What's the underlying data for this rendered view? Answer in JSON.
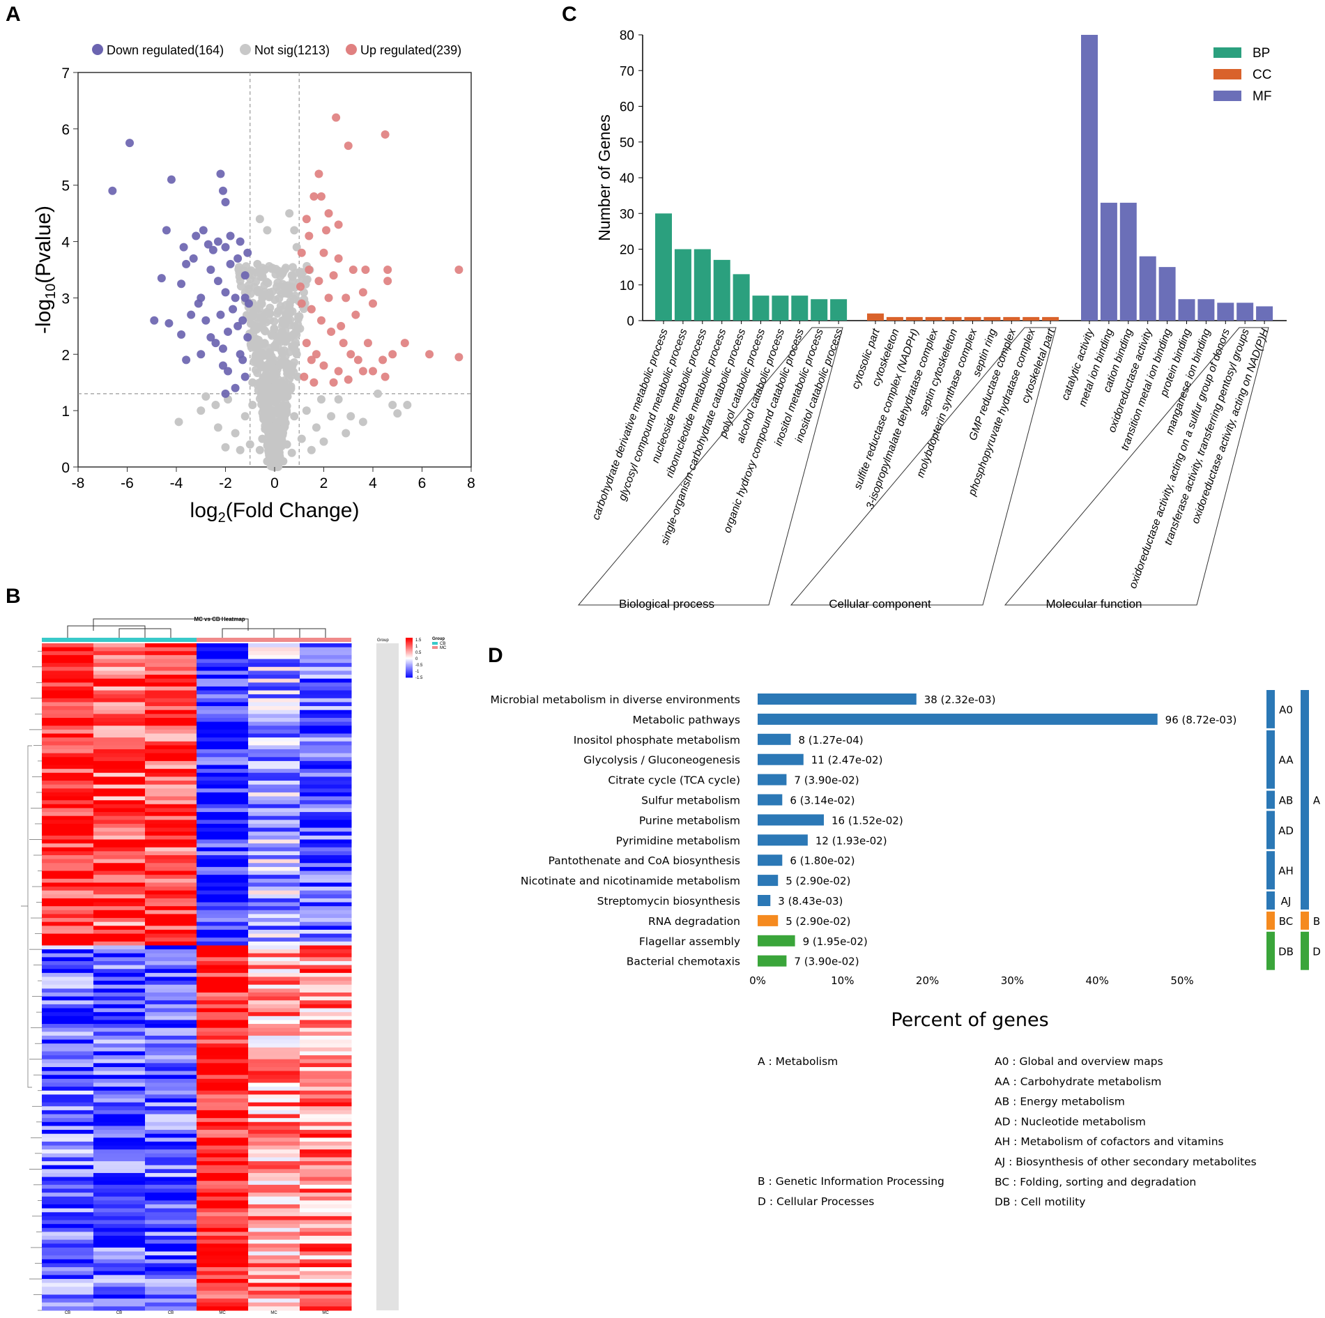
{
  "panels": {
    "a": "A",
    "b": "B",
    "c": "C",
    "d": "D"
  },
  "volcano": {
    "type": "scatter",
    "legend": [
      {
        "label": "Down regulated(164)",
        "color": "#6b64b0"
      },
      {
        "label": "Not sig(1213)",
        "color": "#c8c8c8"
      },
      {
        "label": "Up regulated(239)",
        "color": "#e08080"
      }
    ],
    "xlabel": "log2(Fold Change)",
    "ylabel": "-log10(Pvalue)",
    "xlim": [
      -8,
      8
    ],
    "ylim": [
      0,
      7
    ],
    "xticks": [
      -8,
      -6,
      -4,
      -2,
      0,
      2,
      4,
      6,
      8
    ],
    "yticks": [
      0,
      1,
      2,
      3,
      4,
      5,
      6,
      7
    ],
    "fc_thresholds": [
      -1,
      1
    ],
    "p_threshold": 1.3,
    "counts": {
      "down": 164,
      "notsig": 1213,
      "up": 239
    },
    "down_points": [
      [
        -6.6,
        4.9
      ],
      [
        -5.9,
        5.75
      ],
      [
        -4.2,
        5.1
      ],
      [
        -4.4,
        4.2
      ],
      [
        -4.6,
        3.35
      ],
      [
        -4.9,
        2.6
      ],
      [
        -4.3,
        2.55
      ],
      [
        -3.8,
        2.35
      ],
      [
        -3.6,
        1.9
      ],
      [
        -3.6,
        3.6
      ],
      [
        -3.7,
        3.9
      ],
      [
        -3.8,
        3.25
      ],
      [
        -3.2,
        4.1
      ],
      [
        -2.9,
        4.2
      ],
      [
        -2.2,
        5.2
      ],
      [
        -2.1,
        4.9
      ],
      [
        -2.0,
        4.7
      ],
      [
        -3.1,
        2.9
      ],
      [
        -3.4,
        2.7
      ],
      [
        -3.0,
        2.0
      ],
      [
        -2.6,
        3.5
      ],
      [
        -2.8,
        2.6
      ],
      [
        -2.3,
        3.3
      ],
      [
        -2.0,
        3.1
      ],
      [
        -1.9,
        2.4
      ],
      [
        -2.1,
        1.8
      ],
      [
        -2.0,
        1.3
      ],
      [
        -1.6,
        1.4
      ],
      [
        -1.4,
        2.0
      ],
      [
        -1.3,
        2.6
      ],
      [
        -1.2,
        3.4
      ],
      [
        -1.1,
        3.8
      ],
      [
        -1.5,
        3.7
      ],
      [
        -1.8,
        3.6
      ],
      [
        -2.5,
        3.85
      ],
      [
        -2.7,
        3.95
      ],
      [
        -2.4,
        2.2
      ],
      [
        -1.7,
        2.8
      ],
      [
        -1.2,
        1.6
      ],
      [
        -1.1,
        2.3
      ],
      [
        -3.3,
        3.7
      ],
      [
        -2.2,
        2.7
      ],
      [
        -1.4,
        4.0
      ],
      [
        -1.6,
        3.0
      ],
      [
        -2.0,
        3.9
      ],
      [
        -1.3,
        1.9
      ],
      [
        -1.9,
        1.7
      ],
      [
        -2.6,
        2.3
      ],
      [
        -1.05,
        2.9
      ],
      [
        -1.8,
        4.1
      ],
      [
        -2.3,
        4.0
      ],
      [
        -3.0,
        3.0
      ],
      [
        -1.5,
        2.5
      ],
      [
        -2.1,
        2.1
      ],
      [
        -1.2,
        3.0
      ]
    ],
    "up_points": [
      [
        2.5,
        6.2
      ],
      [
        3.0,
        5.7
      ],
      [
        4.5,
        5.9
      ],
      [
        1.8,
        5.2
      ],
      [
        1.6,
        4.8
      ],
      [
        1.9,
        4.8
      ],
      [
        2.2,
        4.5
      ],
      [
        2.6,
        4.3
      ],
      [
        1.4,
        4.1
      ],
      [
        1.1,
        3.8
      ],
      [
        2.6,
        3.7
      ],
      [
        3.2,
        3.5
      ],
      [
        3.7,
        3.5
      ],
      [
        4.6,
        3.5
      ],
      [
        4.6,
        3.3
      ],
      [
        3.6,
        3.1
      ],
      [
        4.0,
        2.9
      ],
      [
        3.3,
        2.7
      ],
      [
        7.5,
        3.5
      ],
      [
        7.5,
        1.95
      ],
      [
        6.3,
        2.0
      ],
      [
        5.3,
        2.2
      ],
      [
        4.8,
        2.0
      ],
      [
        4.4,
        1.9
      ],
      [
        4.0,
        1.7
      ],
      [
        3.6,
        1.7
      ],
      [
        4.5,
        1.6
      ],
      [
        3.1,
        2.0
      ],
      [
        2.7,
        2.5
      ],
      [
        2.2,
        3.0
      ],
      [
        1.8,
        3.3
      ],
      [
        1.5,
        2.8
      ],
      [
        1.3,
        2.2
      ],
      [
        1.2,
        1.6
      ],
      [
        1.6,
        1.5
      ],
      [
        2.0,
        1.8
      ],
      [
        2.4,
        1.5
      ],
      [
        2.8,
        2.2
      ],
      [
        3.4,
        1.9
      ],
      [
        1.1,
        2.9
      ],
      [
        1.4,
        3.5
      ],
      [
        2.0,
        3.8
      ],
      [
        2.9,
        3.0
      ],
      [
        3.8,
        2.2
      ],
      [
        1.7,
        2.0
      ],
      [
        2.3,
        2.4
      ],
      [
        1.3,
        4.4
      ],
      [
        2.1,
        4.2
      ],
      [
        1.05,
        3.2
      ],
      [
        2.6,
        1.7
      ],
      [
        1.9,
        2.6
      ],
      [
        3.0,
        1.55
      ],
      [
        1.5,
        1.9
      ],
      [
        2.4,
        3.4
      ]
    ],
    "notsig_points": [
      [
        -0.6,
        4.4
      ],
      [
        -0.3,
        4.2
      ],
      [
        0.6,
        4.5
      ],
      [
        0.8,
        4.2
      ],
      [
        0.9,
        3.9
      ],
      [
        -0.7,
        3.6
      ],
      [
        0.7,
        3.4
      ],
      [
        -0.5,
        3.0
      ],
      [
        0.5,
        2.7
      ],
      [
        -0.8,
        2.5
      ],
      [
        0.3,
        2.4
      ],
      [
        -0.2,
        2.0
      ],
      [
        0.2,
        1.8
      ],
      [
        -0.4,
        1.6
      ],
      [
        0.6,
        1.4
      ],
      [
        -0.9,
        1.1
      ],
      [
        0.8,
        0.9
      ],
      [
        -0.3,
        0.8
      ],
      [
        0.3,
        0.6
      ],
      [
        -0.1,
        0.4
      ],
      [
        0.1,
        0.3
      ],
      [
        0.0,
        0.15
      ],
      [
        -0.2,
        0.25
      ],
      [
        0.2,
        0.2
      ],
      [
        -0.5,
        0.5
      ],
      [
        0.5,
        0.4
      ],
      [
        -1.2,
        0.9
      ],
      [
        1.3,
        1.0
      ],
      [
        -1.6,
        0.6
      ],
      [
        1.7,
        0.7
      ],
      [
        -2.4,
        1.1
      ],
      [
        2.6,
        1.2
      ],
      [
        -3.0,
        1.0
      ],
      [
        3.1,
        0.9
      ],
      [
        4.2,
        1.3
      ],
      [
        4.8,
        1.1
      ],
      [
        5.4,
        1.1
      ],
      [
        5.0,
        0.95
      ],
      [
        -3.9,
        0.8
      ],
      [
        -2.8,
        1.25
      ],
      [
        3.6,
        0.8
      ],
      [
        2.9,
        0.6
      ],
      [
        -2.3,
        0.7
      ],
      [
        -1.9,
        1.2
      ],
      [
        1.9,
        1.2
      ],
      [
        2.3,
        0.9
      ],
      [
        -0.9,
        1.5
      ],
      [
        0.95,
        1.6
      ],
      [
        -0.6,
        2.2
      ],
      [
        0.4,
        3.2
      ],
      [
        -0.4,
        3.5
      ],
      [
        0.9,
        2.0
      ],
      [
        -0.8,
        1.9
      ],
      [
        -0.1,
        1.0
      ],
      [
        0.1,
        1.2
      ],
      [
        -0.3,
        0.1
      ],
      [
        0.35,
        0.1
      ],
      [
        -0.6,
        0.3
      ],
      [
        0.7,
        0.25
      ],
      [
        -1.0,
        0.4
      ],
      [
        1.1,
        0.5
      ],
      [
        -1.4,
        0.3
      ],
      [
        1.5,
        0.3
      ],
      [
        2.0,
        0.45
      ],
      [
        -2.0,
        0.35
      ]
    ]
  },
  "heatmap": {
    "type": "heatmap",
    "title": "MC vs CB Heatmap",
    "legend_title": "Group",
    "groups": [
      "CB",
      "MC"
    ],
    "group_colors": [
      "#39c9c9",
      "#f08a8a"
    ],
    "scale_labels": [
      "1.5",
      "1",
      "0.5",
      "0",
      "-0.5",
      "-1",
      "-1.5"
    ],
    "column_labels": [
      "CB",
      "CB",
      "CB",
      "MC",
      "MC",
      "MC"
    ],
    "row_header": "Group",
    "blocks": [
      {
        "rows": 440,
        "values": [
          1.3,
          1.0,
          1.1,
          -1.3,
          -0.5,
          -0.9
        ]
      },
      {
        "rows": 530,
        "values": [
          -0.9,
          -1.0,
          -1.0,
          1.4,
          0.6,
          0.7
        ]
      }
    ]
  },
  "go": {
    "type": "bar",
    "ylabel": "Number of Genes",
    "ylim": [
      0,
      80
    ],
    "yticks": [
      0,
      10,
      20,
      30,
      40,
      50,
      60,
      70,
      80
    ],
    "legend": [
      {
        "name": "BP",
        "color": "#2ba07e"
      },
      {
        "name": "CC",
        "color": "#d9622b"
      },
      {
        "name": "MF",
        "color": "#6b6fb8"
      }
    ],
    "series": [
      {
        "name": "BP",
        "group": "Biological process",
        "categories": [
          "carbohydrate derivative metabolic process",
          "glycosyl compound metabolic process",
          "nucleoside metabolic process",
          "ribonucleotide metabolic process",
          "single-organism carbohydrate catabolic process",
          "polyol catabolic process",
          "alcohol catabolic process",
          "organic hydroxy compound catabolic process",
          "inositol metabolic process",
          "inositol catabolic process"
        ],
        "values": [
          30,
          20,
          20,
          17,
          13,
          7,
          7,
          7,
          6,
          6
        ]
      },
      {
        "name": "CC",
        "group": "Cellular component",
        "categories": [
          "cytosolic part",
          "cytoskeleton",
          "sulfite reductase complex (NADPH)",
          "3-isopropylmalate dehydratase complex",
          "septin cytoskeleton",
          "molybdopterin synthase complex",
          "septin ring",
          "GMP reductase complex",
          "phosphopyruvate hydratase complex",
          "cytoskeletal part"
        ],
        "values": [
          2,
          1,
          1,
          1,
          1,
          1,
          1,
          1,
          1,
          1
        ]
      },
      {
        "name": "MF",
        "group": "Molecular function",
        "categories": [
          "catalytic activity",
          "metal ion binding",
          "cation binding",
          "oxidoreductase activity",
          "transition metal ion binding",
          "protein binding",
          "manganese ion binding",
          "oxidoreductase activity, acting on a sulfur group of donors",
          "transferase activity, transferring pentosyl groups",
          "oxidoreductase activity, acting on NAD(P)H"
        ],
        "values": [
          80,
          33,
          33,
          18,
          15,
          6,
          6,
          5,
          5,
          4
        ]
      }
    ]
  },
  "kegg": {
    "type": "bar",
    "xlabel": "Percent of genes",
    "xlim": [
      0,
      50
    ],
    "xticks": [
      "0%",
      "10%",
      "20%",
      "30%",
      "40%",
      "50%"
    ],
    "categories": [
      "Microbial metabolism in diverse environments",
      "Metabolic pathways",
      "Inositol phosphate metabolism",
      "Glycolysis / Gluconeogenesis",
      "Citrate cycle (TCA cycle)",
      "Sulfur metabolism",
      "Purine metabolism",
      "Pyrimidine metabolism",
      "Pantothenate and CoA biosynthesis",
      "Nicotinate and nicotinamide metabolism",
      "Streptomycin biosynthesis",
      "RNA degradation",
      "Flagellar assembly",
      "Bacterial chemotaxis"
    ],
    "values": [
      18.7,
      47.1,
      3.9,
      5.4,
      3.4,
      2.9,
      7.8,
      5.9,
      2.9,
      2.4,
      1.5,
      2.4,
      4.4,
      3.4
    ],
    "labels": [
      "38 (2.32e-03)",
      "96 (8.72e-03)",
      "8 (1.27e-04)",
      "11 (2.47e-02)",
      "7 (3.90e-02)",
      "6 (3.14e-02)",
      "16 (1.52e-02)",
      "12 (1.93e-02)",
      "6 (1.80e-02)",
      "5 (2.90e-02)",
      "3 (8.43e-03)",
      "5 (2.90e-02)",
      "9 (1.95e-02)",
      "7 (3.90e-02)"
    ],
    "bar_classes": [
      "A",
      "A",
      "A",
      "A",
      "A",
      "A",
      "A",
      "A",
      "A",
      "A",
      "A",
      "B",
      "D",
      "D"
    ],
    "class_colors": {
      "A": "#2b78b6",
      "B": "#f58a1f",
      "D": "#3aa53a"
    },
    "subgroups": [
      {
        "code": "A0",
        "start": 0,
        "end": 1
      },
      {
        "code": "AA",
        "start": 2,
        "end": 4
      },
      {
        "code": "AB",
        "start": 5,
        "end": 5
      },
      {
        "code": "AD",
        "start": 6,
        "end": 7
      },
      {
        "code": "AH",
        "start": 8,
        "end": 9
      },
      {
        "code": "AJ",
        "start": 10,
        "end": 10
      },
      {
        "code": "BC",
        "start": 11,
        "end": 11
      },
      {
        "code": "DB",
        "start": 12,
        "end": 13
      }
    ],
    "groups": [
      {
        "code": "A",
        "start": 0,
        "end": 10
      },
      {
        "code": "B",
        "start": 11,
        "end": 11
      },
      {
        "code": "D",
        "start": 12,
        "end": 13
      }
    ],
    "legend_left": [
      "A : Metabolism",
      "B : Genetic Information Processing",
      "D : Cellular Processes"
    ],
    "legend_right": [
      "A0 : Global and overview maps",
      "AA : Carbohydrate metabolism",
      "AB : Energy metabolism",
      "AD : Nucleotide metabolism",
      "AH : Metabolism of cofactors and vitamins",
      "AJ : Biosynthesis of other secondary metabolites",
      "BC : Folding, sorting and degradation",
      "DB : Cell motility"
    ]
  }
}
